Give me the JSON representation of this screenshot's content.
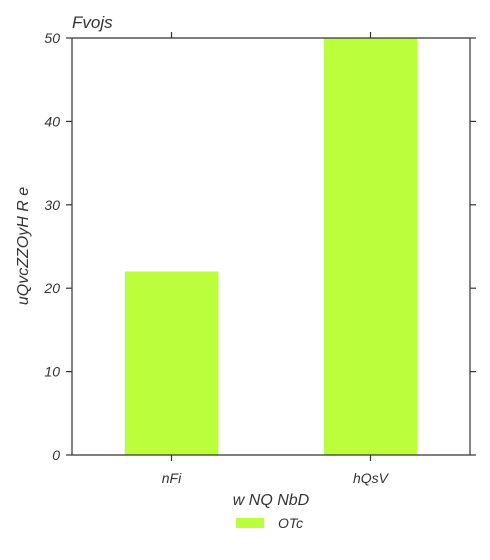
{
  "chart_data": {
    "type": "bar",
    "title": "Fvojs",
    "xlabel": "w NQ NbD",
    "ylabel": "uQvcZZOyH R e",
    "categories": [
      "nFi",
      "hQsV"
    ],
    "series": [
      {
        "name": "OTc",
        "values": [
          22,
          50
        ],
        "color": "#bbff3c"
      }
    ],
    "ylim": [
      0,
      50
    ],
    "yticks": [
      0,
      10,
      20,
      30,
      40,
      50
    ],
    "grid": false,
    "legend_position": "bottom-center"
  }
}
